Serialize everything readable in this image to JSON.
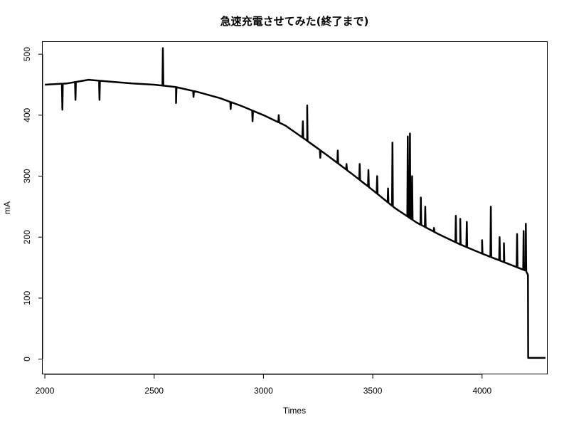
{
  "chart_data": {
    "type": "line",
    "title": "急速充電させてみた(終了まで)",
    "xlabel": "Times",
    "ylabel": "mA",
    "xlim": [
      1990,
      4300
    ],
    "ylim": [
      -25,
      520
    ],
    "x_ticks": [
      2000,
      2500,
      3000,
      3500,
      4000
    ],
    "x_tick_labels": [
      "2000",
      "2500",
      "3000",
      "3500",
      "4000"
    ],
    "y_ticks": [
      0,
      100,
      200,
      300,
      400,
      500
    ],
    "y_tick_labels": [
      "0",
      "100",
      "200",
      "300",
      "400",
      "500"
    ],
    "grid": false,
    "line_color": "#000000",
    "series": [
      {
        "baseline": {
          "x": [
            2000,
            2100,
            2200,
            2300,
            2400,
            2500,
            2600,
            2700,
            2800,
            2900,
            3000,
            3100,
            3200,
            3300,
            3400,
            3500,
            3600,
            3700,
            3800,
            3900,
            4000,
            4100,
            4200,
            4210,
            4211,
            4290
          ],
          "y": [
            450,
            452,
            458,
            455,
            452,
            450,
            446,
            438,
            428,
            415,
            400,
            383,
            358,
            332,
            305,
            277,
            248,
            224,
            205,
            188,
            173,
            159,
            145,
            138,
            2,
            2
          ]
        },
        "spikes": [
          {
            "x": 2080,
            "y": 409
          },
          {
            "x": 2140,
            "y": 425
          },
          {
            "x": 2250,
            "y": 425
          },
          {
            "x": 2540,
            "y": 510
          },
          {
            "x": 2600,
            "y": 420
          },
          {
            "x": 2680,
            "y": 430
          },
          {
            "x": 2850,
            "y": 410
          },
          {
            "x": 2950,
            "y": 390
          },
          {
            "x": 3070,
            "y": 400
          },
          {
            "x": 3180,
            "y": 390
          },
          {
            "x": 3200,
            "y": 416
          },
          {
            "x": 3260,
            "y": 330
          },
          {
            "x": 3340,
            "y": 342
          },
          {
            "x": 3380,
            "y": 320
          },
          {
            "x": 3440,
            "y": 320
          },
          {
            "x": 3480,
            "y": 310
          },
          {
            "x": 3520,
            "y": 300
          },
          {
            "x": 3570,
            "y": 280
          },
          {
            "x": 3590,
            "y": 355
          },
          {
            "x": 3660,
            "y": 365
          },
          {
            "x": 3670,
            "y": 370
          },
          {
            "x": 3680,
            "y": 300
          },
          {
            "x": 3720,
            "y": 265
          },
          {
            "x": 3740,
            "y": 250
          },
          {
            "x": 3780,
            "y": 215
          },
          {
            "x": 3880,
            "y": 235
          },
          {
            "x": 3900,
            "y": 230
          },
          {
            "x": 3930,
            "y": 225
          },
          {
            "x": 4000,
            "y": 195
          },
          {
            "x": 4040,
            "y": 250
          },
          {
            "x": 4080,
            "y": 200
          },
          {
            "x": 4100,
            "y": 190
          },
          {
            "x": 4160,
            "y": 205
          },
          {
            "x": 4190,
            "y": 210
          },
          {
            "x": 4200,
            "y": 222
          }
        ]
      }
    ]
  }
}
